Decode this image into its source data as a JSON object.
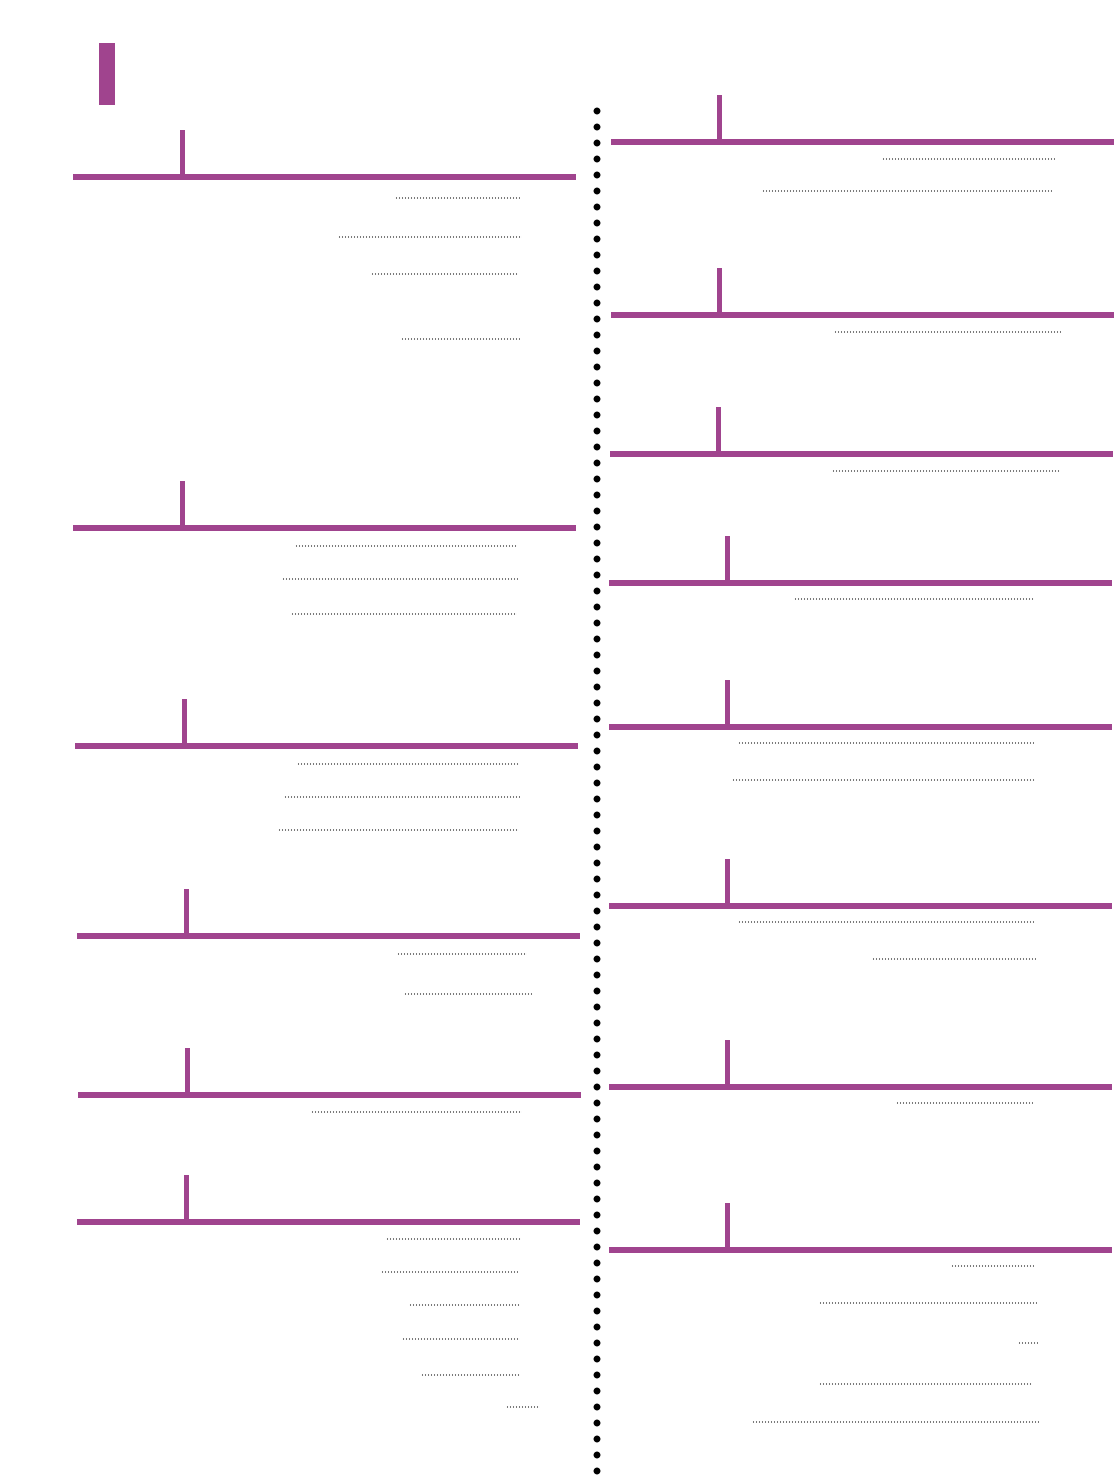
{
  "accent_color": "#a0448e",
  "sections": [
    {
      "title": "",
      "entries": [
        {
          "label": "",
          "page": ""
        },
        {
          "label": "",
          "page": ""
        },
        {
          "label": "",
          "page": ""
        },
        {
          "label": "",
          "page": ""
        }
      ]
    },
    {
      "title": "",
      "entries": [
        {
          "label": "",
          "page": ""
        },
        {
          "label": "",
          "page": ""
        },
        {
          "label": "",
          "page": ""
        }
      ]
    },
    {
      "title": "",
      "entries": [
        {
          "label": "",
          "page": ""
        },
        {
          "label": "",
          "page": ""
        },
        {
          "label": "",
          "page": ""
        }
      ]
    },
    {
      "title": "",
      "entries": [
        {
          "label": "",
          "page": ""
        },
        {
          "label": "",
          "page": ""
        }
      ]
    },
    {
      "title": "",
      "entries": [
        {
          "label": "",
          "page": ""
        }
      ]
    },
    {
      "title": "",
      "entries": [
        {
          "label": "",
          "page": ""
        },
        {
          "label": "",
          "page": ""
        },
        {
          "label": "",
          "page": ""
        },
        {
          "label": "",
          "page": ""
        },
        {
          "label": "",
          "page": ""
        },
        {
          "label": "",
          "page": ""
        }
      ]
    },
    {
      "title": "",
      "entries": [
        {
          "label": "",
          "page": ""
        },
        {
          "label": "",
          "page": ""
        }
      ]
    },
    {
      "title": "",
      "entries": [
        {
          "label": "",
          "page": ""
        }
      ]
    },
    {
      "title": "",
      "entries": [
        {
          "label": "",
          "page": ""
        }
      ]
    },
    {
      "title": "",
      "entries": [
        {
          "label": "",
          "page": ""
        }
      ]
    },
    {
      "title": "",
      "entries": [
        {
          "label": "",
          "page": ""
        },
        {
          "label": "",
          "page": ""
        }
      ]
    },
    {
      "title": "",
      "entries": [
        {
          "label": "",
          "page": ""
        },
        {
          "label": "",
          "page": ""
        }
      ]
    },
    {
      "title": "",
      "entries": [
        {
          "label": "",
          "page": ""
        }
      ]
    },
    {
      "title": "",
      "entries": [
        {
          "label": "",
          "page": ""
        },
        {
          "label": "",
          "page": ""
        },
        {
          "label": "",
          "page": ""
        },
        {
          "label": "",
          "page": ""
        },
        {
          "label": "",
          "page": ""
        }
      ]
    }
  ]
}
